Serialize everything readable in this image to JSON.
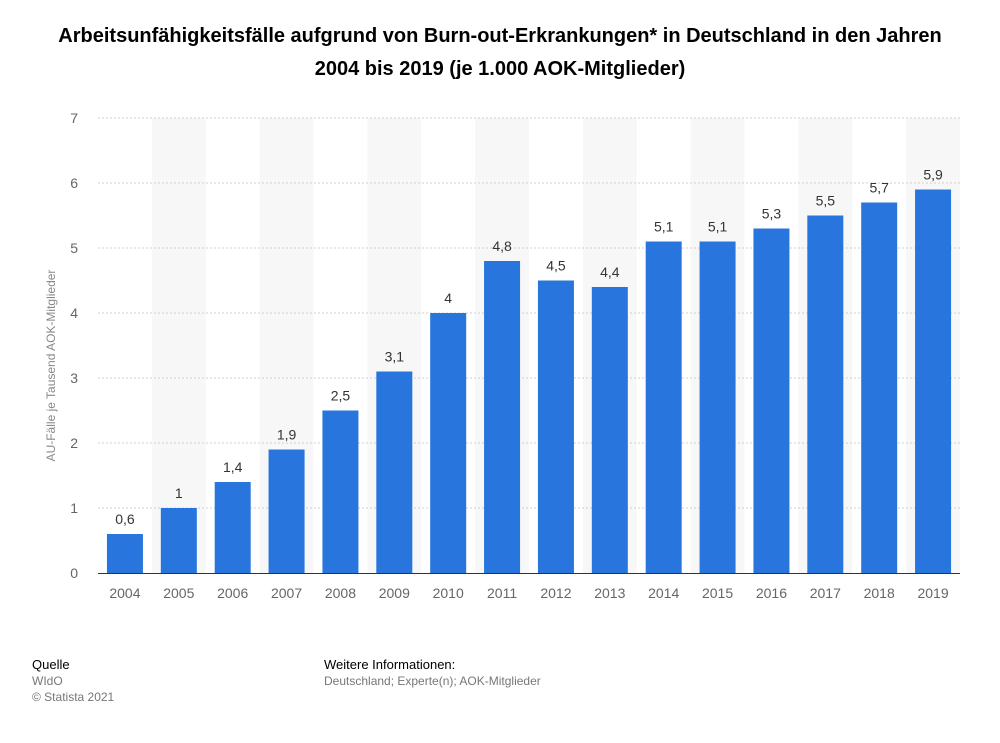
{
  "chart_data": {
    "type": "bar",
    "title": "Arbeitsunfähigkeitsfälle aufgrund von Burn-out-Erkrankungen* in Deutschland in den Jahren 2004 bis 2019 (je 1.000 AOK-Mitglieder)",
    "ylabel": "AU-Fälle je Tausend AOK-Mitglieder",
    "xlabel": "",
    "ylim": [
      0,
      7
    ],
    "yticks": [
      "0",
      "1",
      "2",
      "3",
      "4",
      "5",
      "6",
      "7"
    ],
    "categories": [
      "2004",
      "2005",
      "2006",
      "2007",
      "2008",
      "2009",
      "2010",
      "2011",
      "2012",
      "2013",
      "2014",
      "2015",
      "2016",
      "2017",
      "2018",
      "2019"
    ],
    "values": [
      0.6,
      1,
      1.4,
      1.9,
      2.5,
      3.1,
      4,
      4.8,
      4.5,
      4.4,
      5.1,
      5.1,
      5.3,
      5.5,
      5.7,
      5.9
    ],
    "value_labels": [
      "0,6",
      "1",
      "1,4",
      "1,9",
      "2,5",
      "3,1",
      "4",
      "4,8",
      "4,5",
      "4,4",
      "5,1",
      "5,1",
      "5,3",
      "5,5",
      "5,7",
      "5,9"
    ],
    "bar_color": "#2876dd",
    "grid": true
  },
  "footer": {
    "source_heading": "Quelle",
    "source_name": "WIdO",
    "copyright": "© Statista 2021",
    "info_heading": "Weitere Informationen:",
    "info_text": "Deutschland; Experte(n); AOK-Mitglieder"
  }
}
